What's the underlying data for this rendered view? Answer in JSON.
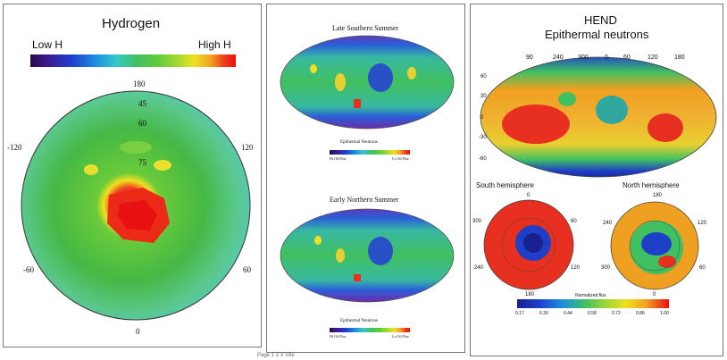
{
  "hydrogen": {
    "title": "Hydrogen",
    "low_label": "Low H",
    "high_label": "High H",
    "lon_labels": {
      "top": "180",
      "right": "120",
      "left": "-120",
      "right_lower": "60",
      "left_lower": "-60",
      "bottom": "0"
    },
    "lat_labels": [
      "45",
      "60",
      "75"
    ]
  },
  "mars_maps": {
    "upper": {
      "title": "Late Southern Summer",
      "legend_label": "Epithermal Neutrons",
      "range_low": "Hi Oil Flux",
      "range_high": "Lo Oil Flux"
    },
    "lower": {
      "title": "Early Northern Summer",
      "legend_label": "Epithermal Neutrons",
      "range_low": "Hi Oil Flux",
      "range_high": "Lo Oil Flux"
    }
  },
  "hend": {
    "title_line1": "HEND",
    "title_line2": "Epithermal neutrons",
    "top_lon_ticks": [
      "90",
      "240",
      "300",
      "0",
      "60",
      "120",
      "180"
    ],
    "lat_ticks": [
      "60",
      "30",
      "0",
      "-30",
      "-60"
    ],
    "south_label": "South hemisphere",
    "north_label": "North hemisphere",
    "south_ticks": {
      "top": "0",
      "left": "300",
      "left_lower": "240",
      "right": "60",
      "right_lower": "120",
      "bottom": "180"
    },
    "north_ticks": {
      "top": "180",
      "left": "240",
      "left_lower": "300",
      "right": "120",
      "right_lower": "60",
      "bottom": "0"
    },
    "flux_label": "Normalized flux",
    "flux_ticks": [
      "0.17",
      "0.30",
      "0.44",
      "0.58",
      "0.72",
      "0.86",
      "1.00"
    ]
  },
  "colors": {
    "scale": [
      "#2a0a4a",
      "#3b1a8a",
      "#1f3fd0",
      "#1e8fe0",
      "#35c8c8",
      "#40c060",
      "#5fcc3a",
      "#a8d830",
      "#f0e020",
      "#f0a020",
      "#f04020",
      "#e81010"
    ]
  },
  "caption": "Page 1 2 3 Title"
}
